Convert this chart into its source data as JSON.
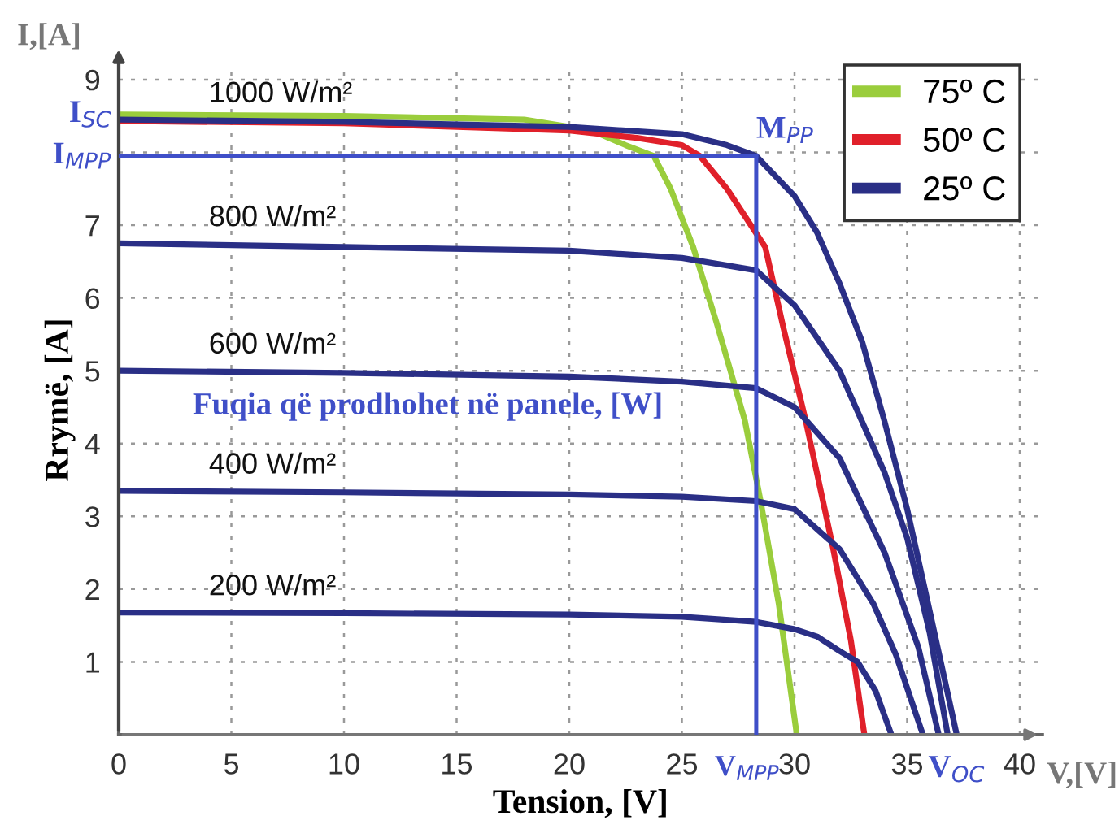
{
  "chart_data": {
    "type": "line",
    "xlabel": "Tension, [V]",
    "ylabel": "Rrymë, [A]",
    "xlim": [
      0,
      41
    ],
    "ylim": [
      0,
      9.2
    ],
    "xticks": [
      0,
      5,
      10,
      15,
      20,
      25,
      30,
      35,
      40
    ],
    "yticks": [
      1,
      2,
      3,
      4,
      5,
      6,
      7,
      {
        "value": 8,
        "label": null
      },
      9
    ],
    "grid": true,
    "legend": "top right",
    "line_style": "solid",
    "marker": "none",
    "series": [
      {
        "name": "75º C",
        "color": "#9acd3c",
        "x": [
          0,
          10,
          18,
          21,
          22.5,
          23.75,
          24.5,
          25.5,
          26.5,
          27.8,
          28.5,
          29.3,
          30.1
        ],
        "values": [
          8.52,
          8.5,
          8.45,
          8.3,
          8.1,
          7.95,
          7.5,
          6.7,
          5.7,
          4.31,
          3.2,
          1.8,
          0
        ]
      },
      {
        "name": "50º C",
        "color": "#e0202a",
        "x": [
          0,
          10,
          20,
          23,
          25,
          25.8,
          27,
          28.7,
          29.5,
          30.5,
          31.7,
          32.5,
          33.1
        ],
        "values": [
          8.43,
          8.4,
          8.3,
          8.2,
          8.1,
          7.95,
          7.5,
          6.7,
          5.6,
          4.31,
          2.58,
          1.3,
          0
        ]
      },
      {
        "name": "25º C",
        "color": "#2a2f86",
        "x": [
          0,
          10,
          20,
          25,
          27,
          28.3,
          30,
          31,
          32,
          33,
          34,
          35,
          36,
          37.2
        ],
        "values": [
          8.45,
          8.42,
          8.35,
          8.25,
          8.1,
          7.95,
          7.4,
          6.9,
          6.2,
          5.4,
          4.3,
          3.1,
          1.7,
          0
        ]
      },
      {
        "color": "#2a2f86",
        "x": [
          0,
          10,
          20,
          25,
          28.3,
          30,
          32,
          34,
          35,
          36,
          36.8
        ],
        "values": [
          6.75,
          6.7,
          6.65,
          6.55,
          6.38,
          5.9,
          5.0,
          3.6,
          2.7,
          1.4,
          0
        ]
      },
      {
        "color": "#2a2f86",
        "x": [
          0,
          10,
          20,
          25,
          28.3,
          30,
          32,
          34,
          35.5,
          36.4
        ],
        "values": [
          5.0,
          4.97,
          4.92,
          4.85,
          4.76,
          4.5,
          3.8,
          2.5,
          1.2,
          0
        ]
      },
      {
        "color": "#2a2f86",
        "x": [
          0,
          10,
          20,
          25,
          28.3,
          30,
          32,
          33.5,
          34.5,
          35.7
        ],
        "values": [
          3.35,
          3.33,
          3.3,
          3.27,
          3.21,
          3.1,
          2.55,
          1.8,
          1.1,
          0
        ]
      },
      {
        "color": "#2a2f86",
        "x": [
          0,
          10,
          20,
          25,
          28.3,
          30,
          31,
          32,
          32.8,
          33.6,
          34.3
        ],
        "values": [
          1.68,
          1.67,
          1.65,
          1.62,
          1.55,
          1.45,
          1.35,
          1.15,
          1.0,
          0.6,
          0
        ]
      }
    ],
    "ref_lines": [
      {
        "axis": "x",
        "value": 28.3,
        "label": "V$_{MPP}$",
        "color": "#3f4fc8"
      },
      {
        "axis": "y",
        "value": 7.95,
        "label": "I$_{MPP}$",
        "color": "#3f4fc8"
      }
    ],
    "annotations": [
      "Fuqia që prodhohet në panele, [W]",
      "I,[A]",
      "V,[V]",
      {
        "text": "I$_{SC}$",
        "x": 0,
        "y": 8.52
      },
      {
        "text": "V$_{OC}$",
        "x": 37.2,
        "y": 0
      },
      {
        "text": "M$_{PP}$",
        "x": 28.3,
        "y": 7.95
      },
      {
        "text": "1000 W/m²",
        "x": 4,
        "y": 8.45
      },
      {
        "text": "800 W/m²",
        "x": 4,
        "y": 6.75
      },
      {
        "text": "600 W/m²",
        "x": 4,
        "y": 5.0
      },
      {
        "text": "400 W/m²",
        "x": 4,
        "y": 3.35
      },
      {
        "text": "200 W/m²",
        "x": 4,
        "y": 1.68
      }
    ]
  }
}
